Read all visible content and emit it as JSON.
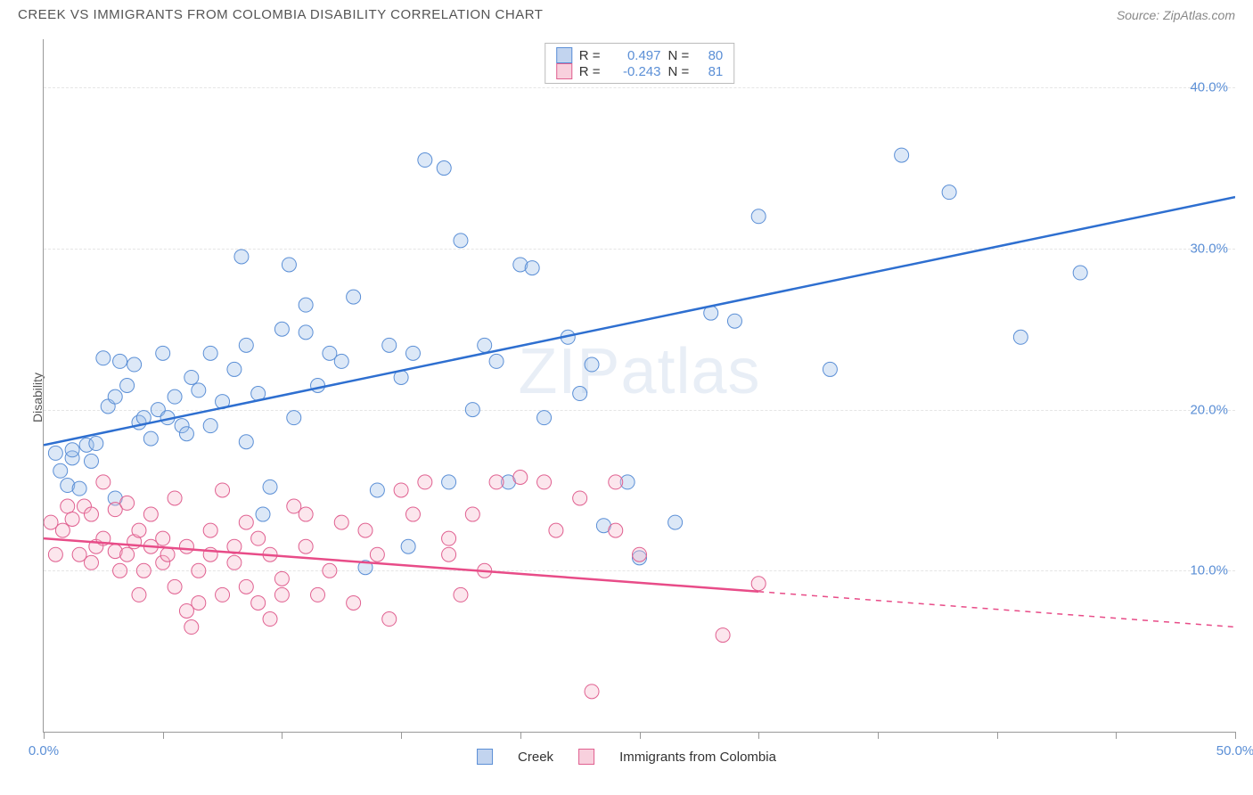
{
  "header": {
    "title": "CREEK VS IMMIGRANTS FROM COLOMBIA DISABILITY CORRELATION CHART",
    "source": "Source: ZipAtlas.com"
  },
  "watermark": {
    "part1": "ZIP",
    "part2": "atlas"
  },
  "ylabel": "Disability",
  "chart": {
    "type": "scatter",
    "background_color": "#ffffff",
    "grid_color": "#e5e5e5",
    "axis_color": "#999999",
    "tick_label_color": "#5b8fd6",
    "xlim": [
      0,
      50
    ],
    "ylim": [
      0,
      43
    ],
    "x_ticks": [
      0,
      5,
      10,
      15,
      20,
      25,
      30,
      35,
      40,
      45,
      50
    ],
    "x_tick_labels": {
      "0": "0.0%",
      "50": "50.0%"
    },
    "y_ticks": [
      10,
      20,
      30,
      40
    ],
    "y_tick_labels": {
      "10": "10.0%",
      "20": "20.0%",
      "30": "30.0%",
      "40": "40.0%"
    },
    "marker_radius": 8,
    "marker_fill_opacity": 0.35,
    "line_width": 2.5,
    "stats_fontsize": 15,
    "series": [
      {
        "name": "Creek",
        "color_fill": "#9bbce8",
        "color_stroke": "#5b8fd6",
        "line_color": "#2e6fd0",
        "R": "0.497",
        "N": "80",
        "trend": {
          "x1": 0,
          "y1": 17.8,
          "x2": 50,
          "y2": 33.2,
          "dash_from_x": 50
        },
        "points": [
          [
            0.5,
            17.3
          ],
          [
            0.7,
            16.2
          ],
          [
            1.0,
            15.3
          ],
          [
            1.2,
            17.0
          ],
          [
            1.2,
            17.5
          ],
          [
            1.5,
            15.1
          ],
          [
            1.8,
            17.8
          ],
          [
            2.0,
            16.8
          ],
          [
            2.2,
            17.9
          ],
          [
            2.5,
            23.2
          ],
          [
            2.7,
            20.2
          ],
          [
            3.0,
            14.5
          ],
          [
            3.0,
            20.8
          ],
          [
            3.2,
            23.0
          ],
          [
            3.5,
            21.5
          ],
          [
            3.8,
            22.8
          ],
          [
            4.0,
            19.2
          ],
          [
            4.2,
            19.5
          ],
          [
            4.5,
            18.2
          ],
          [
            4.8,
            20.0
          ],
          [
            5.0,
            23.5
          ],
          [
            5.2,
            19.5
          ],
          [
            5.5,
            20.8
          ],
          [
            5.8,
            19.0
          ],
          [
            6.0,
            18.5
          ],
          [
            6.2,
            22.0
          ],
          [
            6.5,
            21.2
          ],
          [
            7.0,
            23.5
          ],
          [
            7.0,
            19.0
          ],
          [
            7.5,
            20.5
          ],
          [
            8.0,
            22.5
          ],
          [
            8.3,
            29.5
          ],
          [
            8.5,
            24.0
          ],
          [
            8.5,
            18.0
          ],
          [
            9.0,
            21.0
          ],
          [
            9.2,
            13.5
          ],
          [
            9.5,
            15.2
          ],
          [
            10.0,
            25.0
          ],
          [
            10.3,
            29.0
          ],
          [
            10.5,
            19.5
          ],
          [
            11.0,
            26.5
          ],
          [
            11.0,
            24.8
          ],
          [
            11.5,
            21.5
          ],
          [
            12.0,
            23.5
          ],
          [
            12.5,
            23.0
          ],
          [
            13.0,
            27.0
          ],
          [
            13.5,
            10.2
          ],
          [
            14.0,
            15.0
          ],
          [
            14.5,
            24.0
          ],
          [
            15.0,
            22.0
          ],
          [
            15.3,
            11.5
          ],
          [
            15.5,
            23.5
          ],
          [
            16.0,
            35.5
          ],
          [
            16.8,
            35.0
          ],
          [
            17.0,
            15.5
          ],
          [
            17.5,
            30.5
          ],
          [
            18.0,
            20.0
          ],
          [
            18.5,
            24.0
          ],
          [
            19.0,
            23.0
          ],
          [
            19.5,
            15.5
          ],
          [
            20.0,
            29.0
          ],
          [
            20.5,
            28.8
          ],
          [
            21.0,
            19.5
          ],
          [
            22.0,
            24.5
          ],
          [
            22.5,
            21.0
          ],
          [
            23.0,
            22.8
          ],
          [
            23.5,
            12.8
          ],
          [
            24.5,
            15.5
          ],
          [
            25.0,
            10.8
          ],
          [
            26.5,
            13.0
          ],
          [
            28.0,
            26.0
          ],
          [
            29.0,
            25.5
          ],
          [
            30.0,
            32.0
          ],
          [
            33.0,
            22.5
          ],
          [
            36.0,
            35.8
          ],
          [
            38.0,
            33.5
          ],
          [
            41.0,
            24.5
          ],
          [
            43.5,
            28.5
          ]
        ]
      },
      {
        "name": "Immigrants from Colombia",
        "color_fill": "#f5b8cc",
        "color_stroke": "#e06090",
        "line_color": "#e84c88",
        "R": "-0.243",
        "N": "81",
        "trend": {
          "x1": 0,
          "y1": 12.0,
          "x2": 50,
          "y2": 6.5,
          "dash_from_x": 30
        },
        "points": [
          [
            0.3,
            13.0
          ],
          [
            0.5,
            11.0
          ],
          [
            0.8,
            12.5
          ],
          [
            1.0,
            14.0
          ],
          [
            1.2,
            13.2
          ],
          [
            1.5,
            11.0
          ],
          [
            1.7,
            14.0
          ],
          [
            2.0,
            10.5
          ],
          [
            2.0,
            13.5
          ],
          [
            2.2,
            11.5
          ],
          [
            2.5,
            12.0
          ],
          [
            2.5,
            15.5
          ],
          [
            3.0,
            11.2
          ],
          [
            3.0,
            13.8
          ],
          [
            3.2,
            10.0
          ],
          [
            3.5,
            11.0
          ],
          [
            3.5,
            14.2
          ],
          [
            3.8,
            11.8
          ],
          [
            4.0,
            12.5
          ],
          [
            4.0,
            8.5
          ],
          [
            4.2,
            10.0
          ],
          [
            4.5,
            11.5
          ],
          [
            4.5,
            13.5
          ],
          [
            5.0,
            10.5
          ],
          [
            5.0,
            12.0
          ],
          [
            5.2,
            11.0
          ],
          [
            5.5,
            14.5
          ],
          [
            5.5,
            9.0
          ],
          [
            6.0,
            11.5
          ],
          [
            6.0,
            7.5
          ],
          [
            6.2,
            6.5
          ],
          [
            6.5,
            10.0
          ],
          [
            6.5,
            8.0
          ],
          [
            7.0,
            12.5
          ],
          [
            7.0,
            11.0
          ],
          [
            7.5,
            8.5
          ],
          [
            7.5,
            15.0
          ],
          [
            8.0,
            10.5
          ],
          [
            8.0,
            11.5
          ],
          [
            8.5,
            13.0
          ],
          [
            8.5,
            9.0
          ],
          [
            9.0,
            8.0
          ],
          [
            9.0,
            12.0
          ],
          [
            9.5,
            11.0
          ],
          [
            9.5,
            7.0
          ],
          [
            10.0,
            9.5
          ],
          [
            10.0,
            8.5
          ],
          [
            10.5,
            14.0
          ],
          [
            11.0,
            11.5
          ],
          [
            11.0,
            13.5
          ],
          [
            11.5,
            8.5
          ],
          [
            12.0,
            10.0
          ],
          [
            12.5,
            13.0
          ],
          [
            13.0,
            8.0
          ],
          [
            13.5,
            12.5
          ],
          [
            14.0,
            11.0
          ],
          [
            14.5,
            7.0
          ],
          [
            15.0,
            15.0
          ],
          [
            15.5,
            13.5
          ],
          [
            16.0,
            15.5
          ],
          [
            17.0,
            12.0
          ],
          [
            17.0,
            11.0
          ],
          [
            17.5,
            8.5
          ],
          [
            18.0,
            13.5
          ],
          [
            18.5,
            10.0
          ],
          [
            19.0,
            15.5
          ],
          [
            20.0,
            15.8
          ],
          [
            21.0,
            15.5
          ],
          [
            21.5,
            12.5
          ],
          [
            22.5,
            14.5
          ],
          [
            23.0,
            2.5
          ],
          [
            24.0,
            12.5
          ],
          [
            24.0,
            15.5
          ],
          [
            25.0,
            11.0
          ],
          [
            28.5,
            6.0
          ],
          [
            30.0,
            9.2
          ]
        ]
      }
    ]
  },
  "bottom_legend": [
    {
      "label": "Creek",
      "swatch": "blue"
    },
    {
      "label": "Immigrants from Colombia",
      "swatch": "pink"
    }
  ]
}
